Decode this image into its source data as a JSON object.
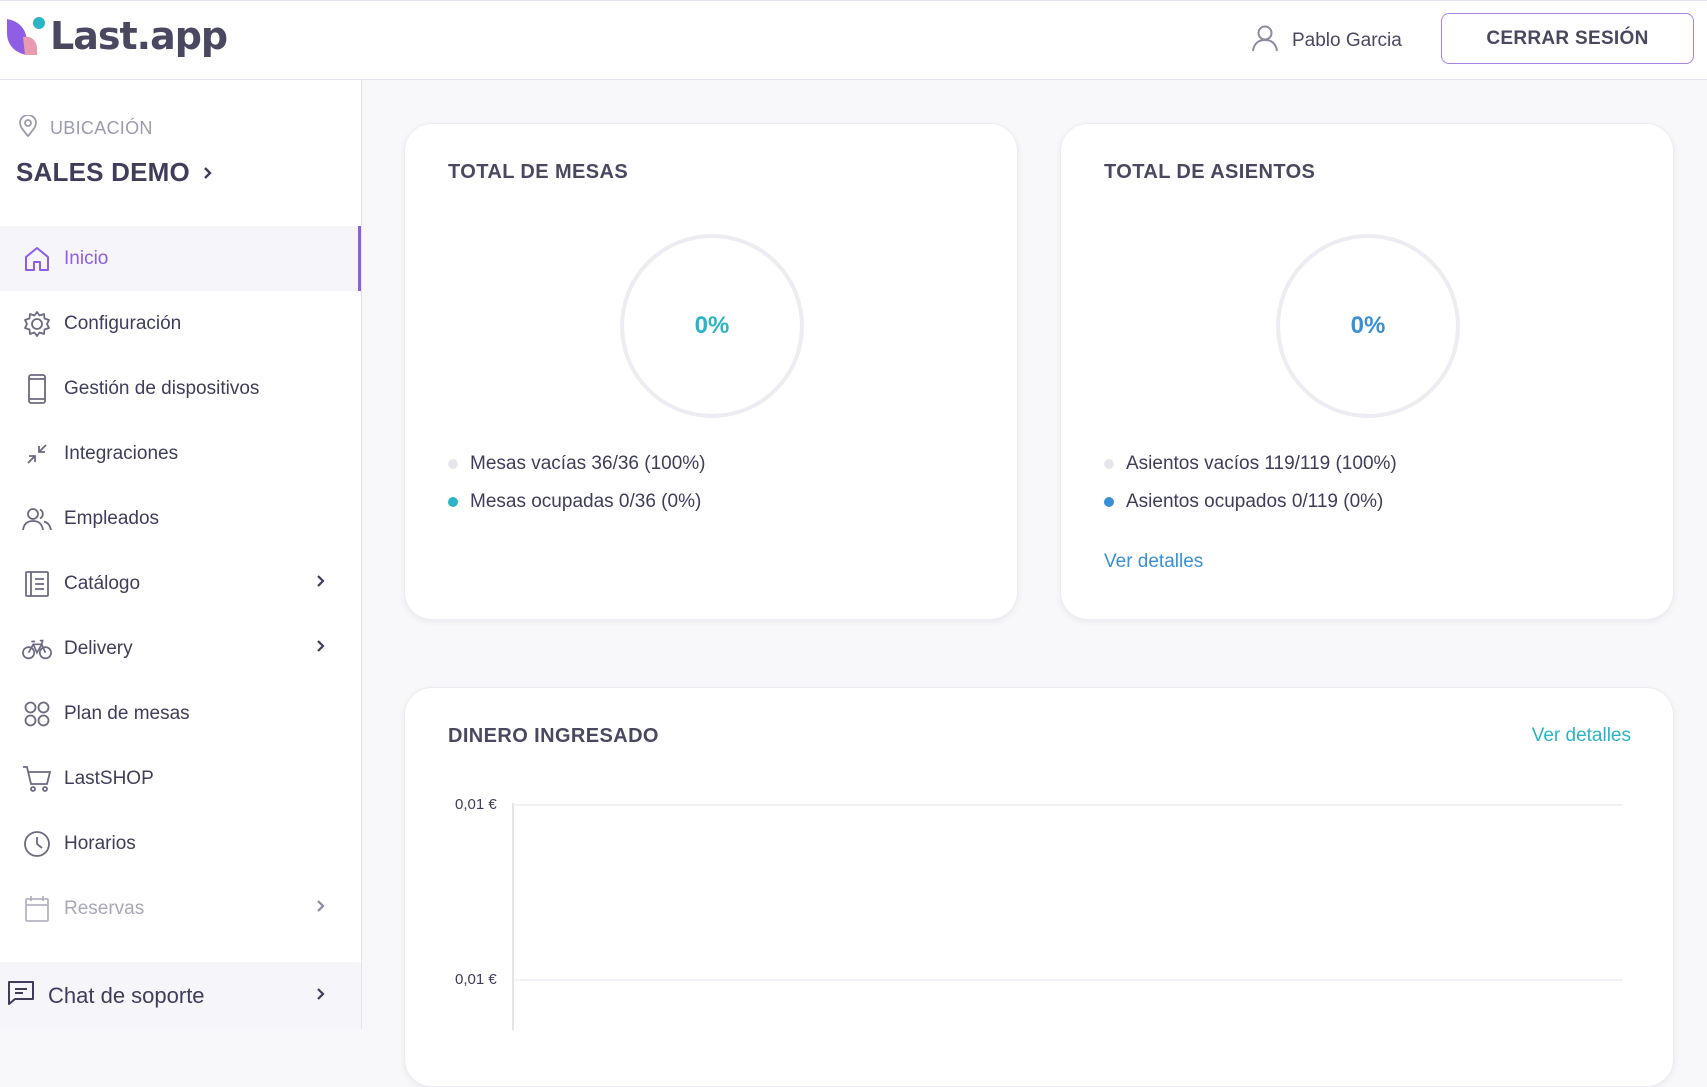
{
  "header": {
    "logo_text": "Last.app",
    "user_name": "Pablo Garcia",
    "logout_label": "CERRAR SESIÓN"
  },
  "sidebar": {
    "location_label": "UBICACIÓN",
    "location_name": "SALES DEMO",
    "items": [
      {
        "label": "Inicio",
        "icon": "home-icon"
      },
      {
        "label": "Configuración",
        "icon": "gear-icon"
      },
      {
        "label": "Gestión de dispositivos",
        "icon": "phone-icon"
      },
      {
        "label": "Integraciones",
        "icon": "arrows-in-icon"
      },
      {
        "label": "Empleados",
        "icon": "users-icon"
      },
      {
        "label": "Catálogo",
        "icon": "catalog-icon"
      },
      {
        "label": "Delivery",
        "icon": "bike-icon"
      },
      {
        "label": "Plan de mesas",
        "icon": "grid-circles-icon"
      },
      {
        "label": "LastSHOP",
        "icon": "cart-icon"
      },
      {
        "label": "Horarios",
        "icon": "clock-icon"
      },
      {
        "label": "Reservas",
        "icon": "calendar-icon"
      }
    ],
    "support_label": "Chat de soporte"
  },
  "tables_card": {
    "title": "TOTAL DE MESAS",
    "percent": "0%",
    "empty_label": "Mesas vacías 36/36 (100%)",
    "occupied_label": "Mesas ocupadas 0/36 (0%)",
    "accent": "#2bb5c4"
  },
  "seats_card": {
    "title": "TOTAL DE ASIENTOS",
    "percent": "0%",
    "empty_label": "Asientos vacíos 119/119 (100%)",
    "occupied_label": "Asientos ocupados 0/119 (0%)",
    "details_link": "Ver detalles",
    "accent": "#3a8fd6"
  },
  "income_card": {
    "title": "DINERO INGRESADO",
    "details_link": "Ver detalles",
    "accent": "#2bb5c4"
  },
  "chart_data": {
    "type": "line",
    "title": "DINERO INGRESADO",
    "y_tick_labels": [
      "0,01 €",
      "0,01 €"
    ],
    "series": []
  }
}
